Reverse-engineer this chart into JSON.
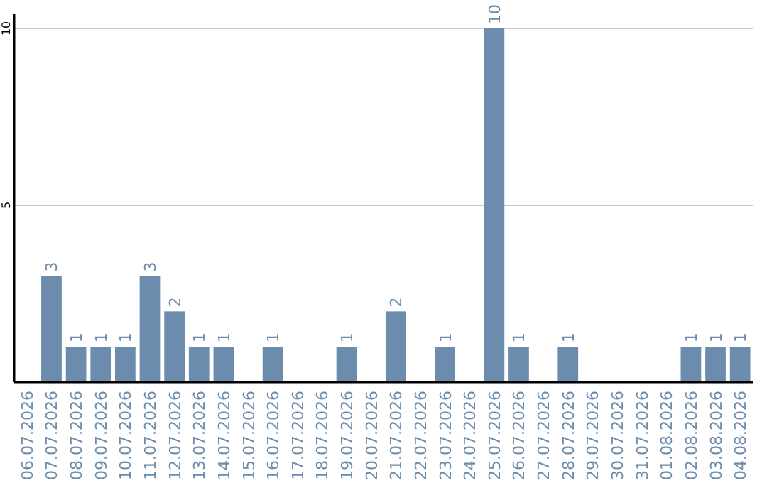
{
  "chart_data": {
    "type": "bar",
    "categories": [
      "06.07.2026",
      "07.07.2026",
      "08.07.2026",
      "09.07.2026",
      "10.07.2026",
      "11.07.2026",
      "12.07.2026",
      "13.07.2026",
      "14.07.2026",
      "15.07.2026",
      "16.07.2026",
      "17.07.2026",
      "18.07.2026",
      "19.07.2026",
      "20.07.2026",
      "21.07.2026",
      "22.07.2026",
      "23.07.2026",
      "24.07.2026",
      "25.07.2026",
      "26.07.2026",
      "27.07.2026",
      "28.07.2026",
      "29.07.2026",
      "30.07.2026",
      "31.07.2026",
      "01.08.2026",
      "02.08.2026",
      "03.08.2026",
      "04.08.2026"
    ],
    "values": [
      0,
      3,
      1,
      1,
      1,
      3,
      2,
      1,
      1,
      0,
      1,
      0,
      0,
      1,
      0,
      2,
      0,
      1,
      0,
      10,
      1,
      0,
      1,
      0,
      0,
      0,
      0,
      1,
      1,
      1
    ],
    "value_labels": [
      null,
      "3",
      "1",
      "1",
      "1",
      "3",
      "2",
      "1",
      "1",
      null,
      "1",
      null,
      null,
      "1",
      null,
      "2",
      null,
      "1",
      null,
      "10",
      "1",
      null,
      "1",
      null,
      null,
      null,
      null,
      "1",
      "1",
      "1"
    ],
    "color": "#6b8cac",
    "ylim": [
      0,
      10.4
    ],
    "yticks": [
      5,
      10
    ],
    "grid": "y"
  }
}
